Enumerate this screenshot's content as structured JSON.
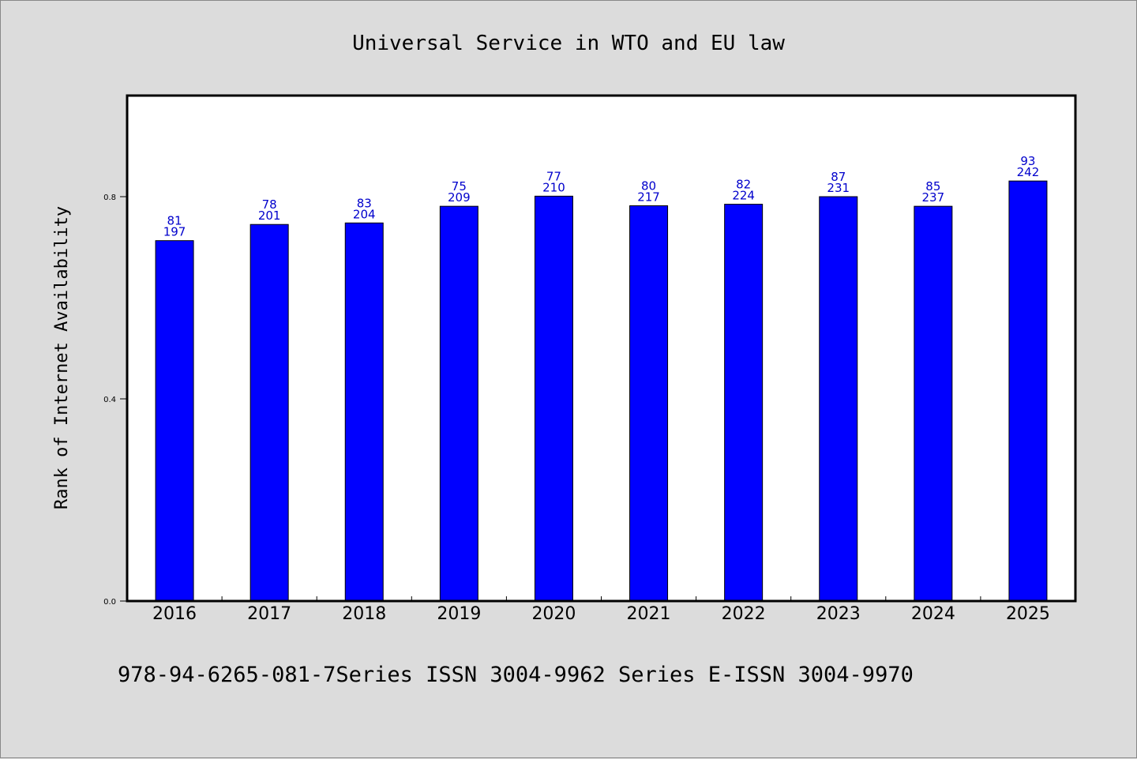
{
  "chart_data": {
    "type": "bar",
    "title": "Universal Service in WTO and EU law",
    "xlabel": "",
    "ylabel": "Rank of Internet Availability",
    "categories": [
      "2016",
      "2017",
      "2018",
      "2019",
      "2020",
      "2021",
      "2022",
      "2023",
      "2024",
      "2025"
    ],
    "values": [
      0.713,
      0.745,
      0.748,
      0.781,
      0.801,
      0.782,
      0.785,
      0.8,
      0.781,
      0.831
    ],
    "labels_top": [
      "81",
      "78",
      "83",
      "75",
      "77",
      "80",
      "82",
      "87",
      "85",
      "93"
    ],
    "labels_bottom": [
      "197",
      "201",
      "204",
      "209",
      "210",
      "217",
      "224",
      "231",
      "237",
      "242"
    ],
    "yticks": [
      "0.0",
      "0.4",
      "0.8"
    ],
    "ylim": [
      0,
      1.0
    ],
    "grid": false,
    "colors": {
      "bar": "#0000ff",
      "label": "#0000cc",
      "background": "#dcdcdc",
      "plot_background": "#ffffff"
    }
  },
  "footer": "978-94-6265-081-7Series ISSN 3004-9962 Series E-ISSN 3004-9970"
}
